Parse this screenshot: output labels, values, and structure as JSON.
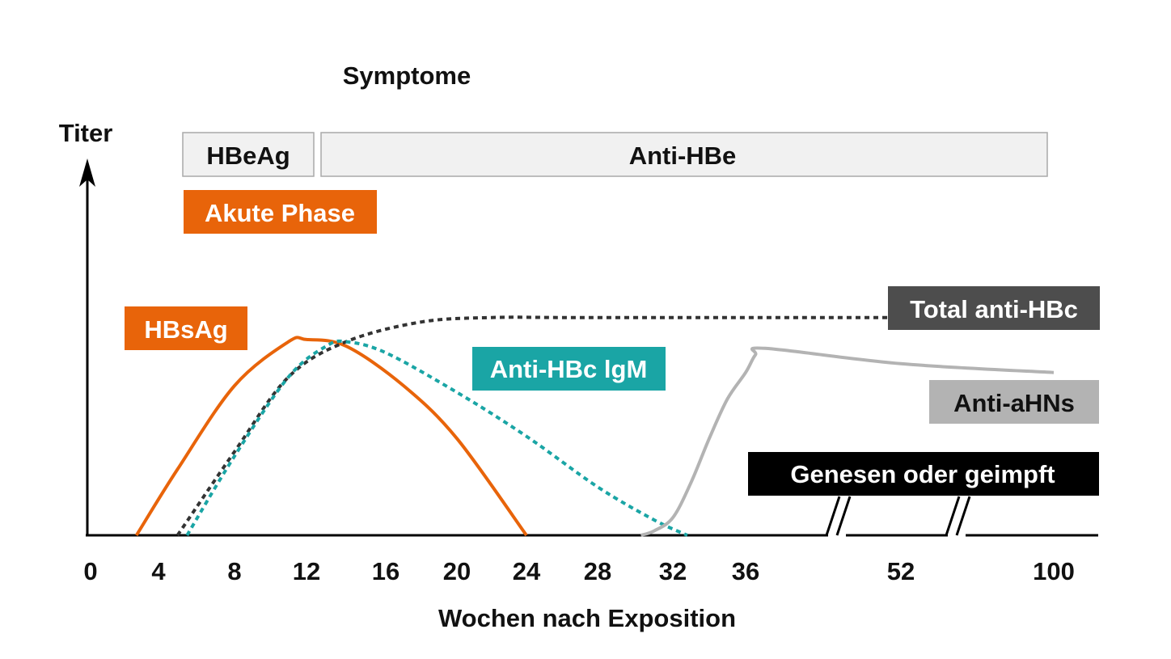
{
  "chart_data": {
    "type": "line",
    "ylabel": "Titer",
    "xlabel": "Wochen nach Exposition",
    "symptoms_label": "Symptome",
    "x_ticks": [
      "0",
      "4",
      "8",
      "12",
      "16",
      "20",
      "24",
      "28",
      "32",
      "36",
      "52",
      "100"
    ],
    "axis_breaks_after": [
      "36",
      "52"
    ],
    "ylim": [
      0,
      100
    ],
    "bands": [
      {
        "label": "HBeAg",
        "style": "gray",
        "start_week": 5,
        "end_week": 12.5
      },
      {
        "label": "Anti-HBe",
        "style": "gray",
        "start_week": 12.5,
        "end_week": 100
      },
      {
        "label": "Akute Phase",
        "style": "orange",
        "start_week": 5,
        "end_week": 16
      }
    ],
    "series": [
      {
        "name": "HBsAg",
        "color": "#e8640a",
        "dash": "solid",
        "points": [
          [
            2.7,
            0
          ],
          [
            5,
            30
          ],
          [
            8,
            68
          ],
          [
            11,
            88
          ],
          [
            12,
            89
          ],
          [
            14,
            86
          ],
          [
            17,
            68
          ],
          [
            20,
            44
          ],
          [
            24,
            0
          ]
        ]
      },
      {
        "name": "Total anti-HBc",
        "color": "#333333",
        "dash": "dotted",
        "points": [
          [
            5,
            0
          ],
          [
            8,
            38
          ],
          [
            11,
            72
          ],
          [
            14,
            88
          ],
          [
            18,
            97
          ],
          [
            22,
            99
          ],
          [
            26,
            99
          ],
          [
            32,
            99
          ],
          [
            36,
            99
          ],
          [
            52,
            99
          ],
          [
            100,
            99
          ]
        ]
      },
      {
        "name": "Anti-HBc lgM",
        "color": "#1aa5a5",
        "dash": "dotted",
        "points": [
          [
            5.5,
            0
          ],
          [
            8,
            36
          ],
          [
            11,
            72
          ],
          [
            13,
            86
          ],
          [
            14,
            88
          ],
          [
            16,
            83
          ],
          [
            20,
            65
          ],
          [
            24,
            45
          ],
          [
            28,
            22
          ],
          [
            31,
            7
          ],
          [
            32.8,
            0
          ]
        ]
      },
      {
        "name": "Anti-aHNs",
        "color": "#b3b3b3",
        "dash": "solid",
        "points": [
          [
            30.3,
            0
          ],
          [
            31,
            2
          ],
          [
            32,
            8
          ],
          [
            33,
            24
          ],
          [
            34,
            44
          ],
          [
            35,
            62
          ],
          [
            36,
            74
          ],
          [
            37,
            82
          ],
          [
            38,
            85
          ],
          [
            52,
            78
          ],
          [
            100,
            74
          ]
        ]
      }
    ],
    "annotations": [
      {
        "text": "HBsAg",
        "color": "#e8640a",
        "text_color": "#ffffff"
      },
      {
        "text": "Anti-HBc lgM",
        "color": "#1aa5a5",
        "text_color": "#ffffff"
      },
      {
        "text": "Total anti-HBc",
        "color": "#4d4d4d",
        "text_color": "#ffffff"
      },
      {
        "text": "Anti-aHNs",
        "color": "#b3b3b3",
        "text_color": "#111111"
      },
      {
        "text": "Genesen oder geimpft",
        "color": "#000000",
        "text_color": "#ffffff"
      }
    ]
  }
}
